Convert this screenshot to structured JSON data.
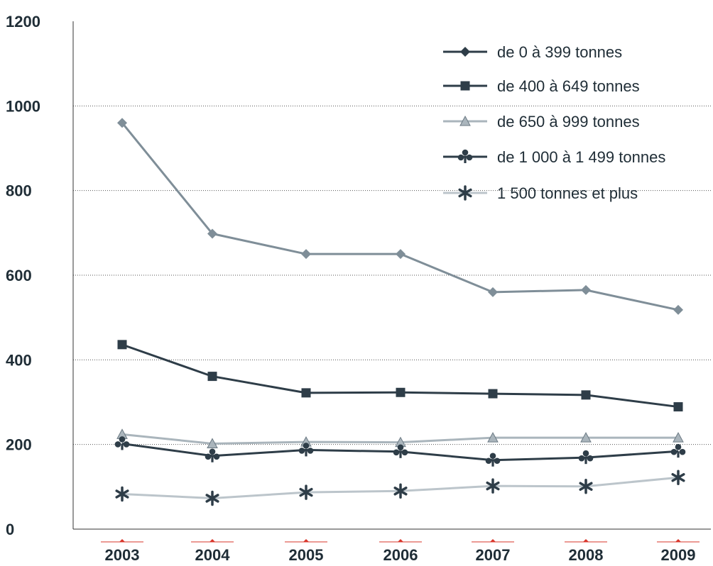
{
  "chart_data": {
    "type": "line",
    "title": "",
    "xlabel": "",
    "ylabel": "",
    "categories": [
      "2003",
      "2004",
      "2005",
      "2006",
      "2007",
      "2008",
      "2009"
    ],
    "ylim": [
      0,
      1200
    ],
    "yticks": [
      "0",
      "200",
      "400",
      "600",
      "800",
      "1000",
      "1200"
    ],
    "grid": "horizontal dotted",
    "legend_position": "top-right",
    "series": [
      {
        "name": "de 0 à 399 tonnes",
        "marker": "diamond",
        "color": "#7f8e98",
        "legend_color": "#2e3d48",
        "values": [
          960,
          698,
          650,
          650,
          560,
          565,
          518
        ]
      },
      {
        "name": "de 400 à 649 tonnes",
        "marker": "square",
        "color": "#2e3d48",
        "legend_color": "#2e3d48",
        "values": [
          436,
          361,
          322,
          323,
          320,
          317,
          289
        ]
      },
      {
        "name": "de 650 à 999 tonnes",
        "marker": "triangle",
        "color": "#aab5bc",
        "legend_color": "#aab5bc",
        "values": [
          224,
          202,
          206,
          205,
          216,
          216,
          216
        ]
      },
      {
        "name": "de 1 000 à 1 499 tonnes",
        "marker": "club",
        "color": "#2e3d48",
        "legend_color": "#2e3d48",
        "values": [
          202,
          173,
          187,
          183,
          163,
          169,
          184
        ]
      },
      {
        "name": "1 500 tonnes et plus",
        "marker": "asterisk",
        "color": "#bcc5cb",
        "legend_color": "#bcc5cb",
        "values": [
          83,
          73,
          87,
          90,
          102,
          101,
          122
        ]
      }
    ],
    "colors": {
      "text": "#1f2d36",
      "tick_accent": "#d8352a",
      "marker_dark": "#2e3d48",
      "marker_mid": "#7f8e98",
      "marker_light": "#aab5bc"
    }
  }
}
